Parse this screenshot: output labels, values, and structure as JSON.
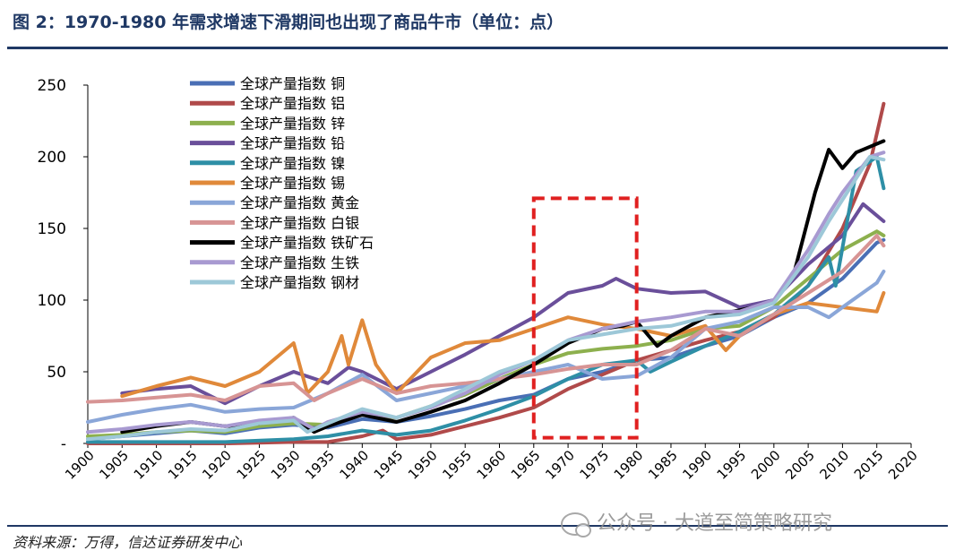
{
  "title": "图 2：1970-1980 年需求增速下滑期间也出现了商品牛市（单位：点）",
  "source": "资料来源：万得，信达证券研发中心",
  "watermark": "公众号 · 大道至简策略研究",
  "chart_data": {
    "type": "line",
    "title": "图 2：1970-1980 年需求增速下滑期间也出现了商品牛市（单位：点）",
    "xlabel": "",
    "ylabel": "",
    "xlim": [
      1900,
      2020
    ],
    "ylim": [
      0,
      250
    ],
    "yticks": [
      0,
      50,
      100,
      150,
      200,
      250
    ],
    "ytick_labels": [
      "-",
      "50",
      "100",
      "150",
      "200",
      "250"
    ],
    "xticks": [
      1900,
      1905,
      1910,
      1915,
      1920,
      1925,
      1930,
      1935,
      1940,
      1945,
      1950,
      1955,
      1960,
      1965,
      1970,
      1975,
      1980,
      1985,
      1990,
      1995,
      2000,
      2005,
      2010,
      2015,
      2020
    ],
    "highlight": {
      "x_from": 1965,
      "x_to": 1980,
      "y_from": 4,
      "y_to": 171,
      "style": "red-dashed-box"
    },
    "legend_position": "top-left",
    "series": [
      {
        "name": "全球产量指数 铜",
        "color": "#4a6fb5",
        "points": [
          [
            1900,
            3
          ],
          [
            1905,
            5
          ],
          [
            1910,
            7
          ],
          [
            1915,
            9
          ],
          [
            1920,
            7
          ],
          [
            1925,
            11
          ],
          [
            1930,
            13
          ],
          [
            1935,
            11
          ],
          [
            1940,
            17
          ],
          [
            1945,
            15
          ],
          [
            1950,
            19
          ],
          [
            1955,
            24
          ],
          [
            1960,
            30
          ],
          [
            1965,
            34
          ],
          [
            1970,
            45
          ],
          [
            1975,
            50
          ],
          [
            1980,
            58
          ],
          [
            1985,
            60
          ],
          [
            1990,
            68
          ],
          [
            1995,
            75
          ],
          [
            2000,
            88
          ],
          [
            2005,
            98
          ],
          [
            2010,
            115
          ],
          [
            2015,
            140
          ],
          [
            2016,
            142
          ]
        ]
      },
      {
        "name": "全球产量指数 铝",
        "color": "#b04a4a",
        "points": [
          [
            1900,
            0
          ],
          [
            1910,
            0
          ],
          [
            1920,
            0
          ],
          [
            1930,
            1
          ],
          [
            1935,
            1
          ],
          [
            1940,
            5
          ],
          [
            1943,
            9
          ],
          [
            1945,
            3
          ],
          [
            1950,
            6
          ],
          [
            1955,
            12
          ],
          [
            1960,
            18
          ],
          [
            1965,
            25
          ],
          [
            1970,
            38
          ],
          [
            1975,
            48
          ],
          [
            1980,
            58
          ],
          [
            1985,
            65
          ],
          [
            1990,
            72
          ],
          [
            1995,
            78
          ],
          [
            2000,
            88
          ],
          [
            2005,
            110
          ],
          [
            2010,
            150
          ],
          [
            2014,
            195
          ],
          [
            2016,
            237
          ]
        ]
      },
      {
        "name": "全球产量指数 锌",
        "color": "#8db04e",
        "points": [
          [
            1900,
            5
          ],
          [
            1905,
            6
          ],
          [
            1910,
            8
          ],
          [
            1915,
            9
          ],
          [
            1920,
            8
          ],
          [
            1925,
            12
          ],
          [
            1930,
            14
          ],
          [
            1935,
            13
          ],
          [
            1940,
            20
          ],
          [
            1945,
            18
          ],
          [
            1950,
            26
          ],
          [
            1955,
            34
          ],
          [
            1960,
            45
          ],
          [
            1965,
            55
          ],
          [
            1970,
            63
          ],
          [
            1975,
            66
          ],
          [
            1980,
            68
          ],
          [
            1985,
            72
          ],
          [
            1990,
            80
          ],
          [
            1995,
            82
          ],
          [
            2000,
            95
          ],
          [
            2005,
            115
          ],
          [
            2010,
            135
          ],
          [
            2015,
            148
          ],
          [
            2016,
            145
          ]
        ]
      },
      {
        "name": "全球产量指数 铅",
        "color": "#6a4f9a",
        "points": [
          [
            1905,
            35
          ],
          [
            1910,
            38
          ],
          [
            1915,
            40
          ],
          [
            1920,
            28
          ],
          [
            1925,
            40
          ],
          [
            1930,
            50
          ],
          [
            1935,
            42
          ],
          [
            1938,
            53
          ],
          [
            1940,
            50
          ],
          [
            1945,
            38
          ],
          [
            1950,
            50
          ],
          [
            1955,
            62
          ],
          [
            1960,
            75
          ],
          [
            1965,
            88
          ],
          [
            1970,
            105
          ],
          [
            1975,
            110
          ],
          [
            1977,
            115
          ],
          [
            1980,
            108
          ],
          [
            1985,
            105
          ],
          [
            1990,
            106
          ],
          [
            1995,
            95
          ],
          [
            2000,
            100
          ],
          [
            2005,
            125
          ],
          [
            2010,
            145
          ],
          [
            2013,
            167
          ],
          [
            2016,
            155
          ]
        ]
      },
      {
        "name": "全球产量指数 镍",
        "color": "#2e8fa6",
        "points": [
          [
            1900,
            1
          ],
          [
            1910,
            1
          ],
          [
            1920,
            1
          ],
          [
            1930,
            3
          ],
          [
            1935,
            5
          ],
          [
            1940,
            9
          ],
          [
            1945,
            6
          ],
          [
            1950,
            9
          ],
          [
            1955,
            16
          ],
          [
            1960,
            24
          ],
          [
            1965,
            33
          ],
          [
            1970,
            45
          ],
          [
            1975,
            55
          ],
          [
            1980,
            58
          ],
          [
            1982,
            50
          ],
          [
            1985,
            57
          ],
          [
            1990,
            68
          ],
          [
            1995,
            78
          ],
          [
            2000,
            90
          ],
          [
            2005,
            110
          ],
          [
            2008,
            130
          ],
          [
            2009,
            110
          ],
          [
            2012,
            190
          ],
          [
            2015,
            200
          ],
          [
            2016,
            178
          ]
        ]
      },
      {
        "name": "全球产量指数 锡",
        "color": "#e0893a",
        "points": [
          [
            1905,
            33
          ],
          [
            1910,
            40
          ],
          [
            1915,
            46
          ],
          [
            1920,
            40
          ],
          [
            1925,
            50
          ],
          [
            1930,
            70
          ],
          [
            1932,
            35
          ],
          [
            1935,
            50
          ],
          [
            1937,
            75
          ],
          [
            1938,
            55
          ],
          [
            1940,
            86
          ],
          [
            1942,
            55
          ],
          [
            1945,
            35
          ],
          [
            1950,
            60
          ],
          [
            1955,
            70
          ],
          [
            1960,
            72
          ],
          [
            1965,
            80
          ],
          [
            1970,
            88
          ],
          [
            1975,
            83
          ],
          [
            1980,
            80
          ],
          [
            1985,
            75
          ],
          [
            1990,
            82
          ],
          [
            1993,
            65
          ],
          [
            1995,
            75
          ],
          [
            2000,
            90
          ],
          [
            2005,
            98
          ],
          [
            2010,
            95
          ],
          [
            2015,
            92
          ],
          [
            2016,
            105
          ]
        ]
      },
      {
        "name": "全球产量指数 黄金",
        "color": "#8aa6d8",
        "points": [
          [
            1900,
            15
          ],
          [
            1905,
            20
          ],
          [
            1910,
            24
          ],
          [
            1915,
            27
          ],
          [
            1920,
            22
          ],
          [
            1925,
            24
          ],
          [
            1930,
            25
          ],
          [
            1935,
            35
          ],
          [
            1940,
            48
          ],
          [
            1945,
            30
          ],
          [
            1950,
            35
          ],
          [
            1955,
            40
          ],
          [
            1960,
            45
          ],
          [
            1965,
            50
          ],
          [
            1970,
            55
          ],
          [
            1975,
            45
          ],
          [
            1980,
            47
          ],
          [
            1985,
            60
          ],
          [
            1990,
            80
          ],
          [
            1995,
            85
          ],
          [
            2000,
            95
          ],
          [
            2005,
            95
          ],
          [
            2008,
            88
          ],
          [
            2010,
            95
          ],
          [
            2015,
            112
          ],
          [
            2016,
            120
          ]
        ]
      },
      {
        "name": "全球产量指数 白银",
        "color": "#d79494",
        "points": [
          [
            1900,
            29
          ],
          [
            1905,
            30
          ],
          [
            1910,
            32
          ],
          [
            1915,
            34
          ],
          [
            1920,
            30
          ],
          [
            1925,
            40
          ],
          [
            1930,
            42
          ],
          [
            1933,
            30
          ],
          [
            1935,
            35
          ],
          [
            1940,
            45
          ],
          [
            1945,
            35
          ],
          [
            1950,
            40
          ],
          [
            1955,
            42
          ],
          [
            1960,
            45
          ],
          [
            1965,
            48
          ],
          [
            1970,
            52
          ],
          [
            1975,
            55
          ],
          [
            1980,
            55
          ],
          [
            1985,
            65
          ],
          [
            1990,
            80
          ],
          [
            1995,
            75
          ],
          [
            2000,
            90
          ],
          [
            2005,
            105
          ],
          [
            2010,
            120
          ],
          [
            2015,
            145
          ],
          [
            2016,
            138
          ]
        ]
      },
      {
        "name": "全球产量指数 铁矿石",
        "color": "#000000",
        "points": [
          [
            1905,
            8
          ],
          [
            1910,
            12
          ],
          [
            1915,
            15
          ],
          [
            1920,
            12
          ],
          [
            1925,
            14
          ],
          [
            1930,
            18
          ],
          [
            1933,
            8
          ],
          [
            1935,
            12
          ],
          [
            1940,
            20
          ],
          [
            1945,
            15
          ],
          [
            1950,
            22
          ],
          [
            1955,
            30
          ],
          [
            1960,
            42
          ],
          [
            1965,
            55
          ],
          [
            1970,
            70
          ],
          [
            1975,
            80
          ],
          [
            1978,
            82
          ],
          [
            1980,
            85
          ],
          [
            1983,
            68
          ],
          [
            1985,
            75
          ],
          [
            1990,
            88
          ],
          [
            1995,
            93
          ],
          [
            2000,
            98
          ],
          [
            2003,
            120
          ],
          [
            2006,
            175
          ],
          [
            2008,
            205
          ],
          [
            2010,
            192
          ],
          [
            2012,
            203
          ],
          [
            2014,
            207
          ],
          [
            2016,
            211
          ]
        ]
      },
      {
        "name": "全球产量指数 生铁",
        "color": "#a89ad1",
        "points": [
          [
            1900,
            8
          ],
          [
            1905,
            10
          ],
          [
            1910,
            13
          ],
          [
            1915,
            15
          ],
          [
            1920,
            12
          ],
          [
            1925,
            16
          ],
          [
            1930,
            18
          ],
          [
            1933,
            10
          ],
          [
            1935,
            15
          ],
          [
            1940,
            22
          ],
          [
            1945,
            18
          ],
          [
            1950,
            25
          ],
          [
            1955,
            35
          ],
          [
            1960,
            48
          ],
          [
            1965,
            58
          ],
          [
            1970,
            72
          ],
          [
            1975,
            80
          ],
          [
            1980,
            85
          ],
          [
            1985,
            88
          ],
          [
            1990,
            92
          ],
          [
            1995,
            92
          ],
          [
            2000,
            100
          ],
          [
            2005,
            135
          ],
          [
            2008,
            160
          ],
          [
            2010,
            175
          ],
          [
            2014,
            200
          ],
          [
            2016,
            203
          ]
        ]
      },
      {
        "name": "全球产量指数 钢材",
        "color": "#9dc8d8",
        "points": [
          [
            1900,
            3
          ],
          [
            1905,
            5
          ],
          [
            1910,
            8
          ],
          [
            1915,
            10
          ],
          [
            1920,
            9
          ],
          [
            1925,
            14
          ],
          [
            1930,
            16
          ],
          [
            1932,
            8
          ],
          [
            1935,
            14
          ],
          [
            1940,
            24
          ],
          [
            1945,
            18
          ],
          [
            1950,
            26
          ],
          [
            1955,
            38
          ],
          [
            1960,
            50
          ],
          [
            1965,
            58
          ],
          [
            1970,
            72
          ],
          [
            1975,
            76
          ],
          [
            1980,
            80
          ],
          [
            1985,
            82
          ],
          [
            1990,
            88
          ],
          [
            1995,
            90
          ],
          [
            2000,
            98
          ],
          [
            2005,
            130
          ],
          [
            2008,
            155
          ],
          [
            2010,
            170
          ],
          [
            2014,
            200
          ],
          [
            2016,
            198
          ]
        ]
      }
    ]
  }
}
